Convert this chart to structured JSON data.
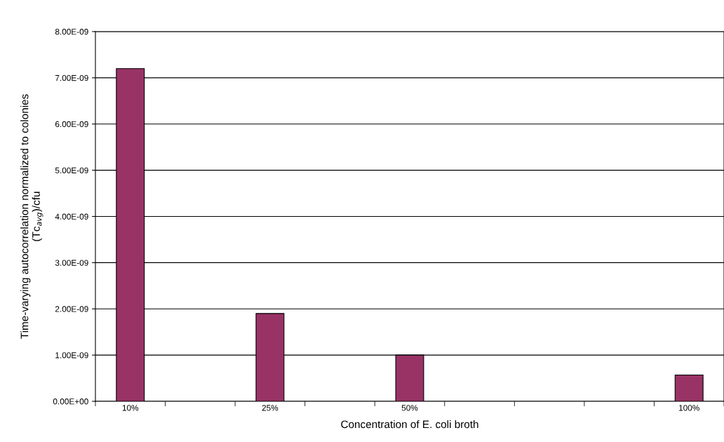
{
  "chart_data": {
    "type": "bar",
    "xlabel": "Concentration of E. coli broth",
    "ylabel": "Time-varying autocorrelation normalized to colonies\n(Tc$_{avg}$)/cfu",
    "categories": [
      "10%",
      null,
      "25%",
      null,
      "50%",
      null,
      null,
      null,
      "100%"
    ],
    "values": [
      7.2e-09,
      null,
      1.9e-09,
      null,
      1e-09,
      null,
      null,
      null,
      5.7e-10
    ],
    "color": "#993366",
    "ylim": [
      0,
      8e-09
    ],
    "yticks": [
      {
        "value": 0,
        "label": "0.00E+00"
      },
      {
        "value": 1e-09,
        "label": "1.00E-09"
      },
      {
        "value": 2e-09,
        "label": "2.00E-09"
      },
      {
        "value": 3e-09,
        "label": "3.00E-09"
      },
      {
        "value": 4e-09,
        "label": "4.00E-09"
      },
      {
        "value": 5e-09,
        "label": "5.00E-09"
      },
      {
        "value": 6e-09,
        "label": "6.00E-09"
      },
      {
        "value": 7e-09,
        "label": "7.00E-09"
      },
      {
        "value": 8e-09,
        "label": "8.00E-09"
      }
    ],
    "grid": "y",
    "legend": false
  }
}
